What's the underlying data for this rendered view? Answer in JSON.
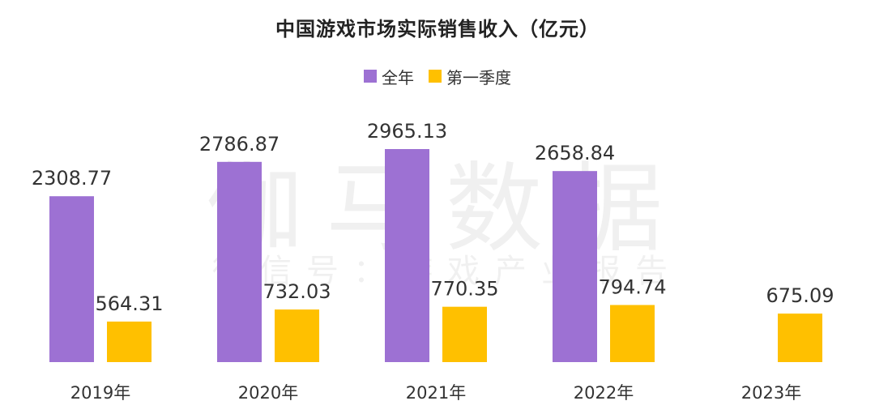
{
  "chart_data": {
    "type": "bar",
    "title": "中国游戏市场实际销售收入（亿元）",
    "categories": [
      "2019年",
      "2020年",
      "2021年",
      "2022年",
      "2023年"
    ],
    "series": [
      {
        "name": "全年",
        "color": "#9D71D3",
        "values": [
          2308.77,
          2786.87,
          2965.13,
          2658.84,
          null
        ],
        "labels": [
          "2308.77",
          "2786.87",
          "2965.13",
          "2658.84",
          null
        ]
      },
      {
        "name": "第一季度",
        "color": "#FFC000",
        "values": [
          564.31,
          732.03,
          770.35,
          794.74,
          675.09
        ],
        "labels": [
          "564.31",
          "732.03",
          "770.35",
          "794.74",
          "675.09"
        ]
      }
    ],
    "ylim": [
      0,
      3400
    ],
    "grid": false,
    "legend": "top-center"
  },
  "watermark": {
    "main": "伽马数据",
    "sub": "微信号：游戏产业报告"
  }
}
